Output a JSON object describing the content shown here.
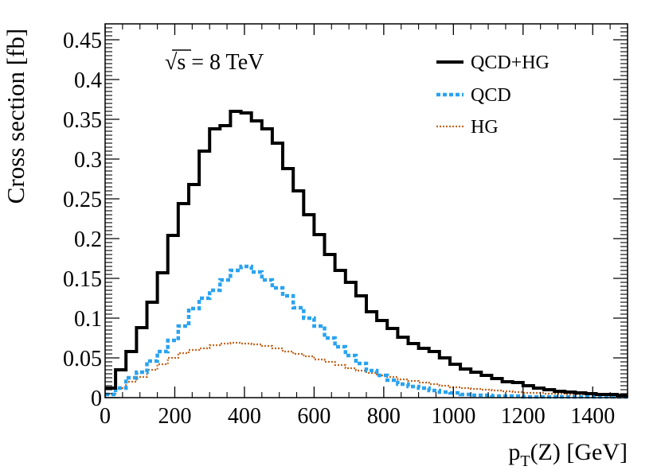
{
  "chart_data": {
    "type": "line",
    "step": true,
    "xlabel_main": "p",
    "xlabel_sub": "T",
    "xlabel_rest": "(Z) [GeV]",
    "ylabel": "Cross section [fb]",
    "annotation_root": "√s",
    "annotation_rest": " = 8 TeV",
    "xlim": [
      0,
      1500
    ],
    "ylim": [
      0,
      0.47
    ],
    "xticks": [
      0,
      200,
      400,
      600,
      800,
      1000,
      1200,
      1400
    ],
    "xtick_labels": [
      "0",
      "200",
      "400",
      "600",
      "800",
      "1000",
      "1200",
      "1400"
    ],
    "yticks": [
      0,
      0.05,
      0.1,
      0.15,
      0.2,
      0.25,
      0.3,
      0.35,
      0.4,
      0.45
    ],
    "ytick_labels": [
      "0",
      "0.05",
      "0.1",
      "0.15",
      "0.2",
      "0.25",
      "0.3",
      "0.35",
      "0.4",
      "0.45"
    ],
    "bin_width": 30,
    "series": [
      {
        "name": "QCD+HG",
        "color": "#000000",
        "style": "solid",
        "values": [
          0.012,
          0.035,
          0.058,
          0.088,
          0.12,
          0.157,
          0.204,
          0.244,
          0.268,
          0.31,
          0.338,
          0.342,
          0.36,
          0.358,
          0.348,
          0.338,
          0.32,
          0.288,
          0.26,
          0.23,
          0.205,
          0.18,
          0.16,
          0.145,
          0.128,
          0.108,
          0.097,
          0.087,
          0.076,
          0.068,
          0.062,
          0.058,
          0.05,
          0.042,
          0.036,
          0.032,
          0.028,
          0.024,
          0.02,
          0.019,
          0.015,
          0.012,
          0.01,
          0.008,
          0.007,
          0.006,
          0.005,
          0.004,
          0.004,
          0.003
        ]
      },
      {
        "name": "QCD",
        "color": "#29a3f0",
        "style": "dashed",
        "values": [
          0.004,
          0.012,
          0.025,
          0.032,
          0.046,
          0.058,
          0.072,
          0.09,
          0.112,
          0.125,
          0.135,
          0.148,
          0.16,
          0.165,
          0.158,
          0.148,
          0.138,
          0.128,
          0.113,
          0.1,
          0.09,
          0.075,
          0.064,
          0.053,
          0.043,
          0.034,
          0.028,
          0.022,
          0.017,
          0.014,
          0.012,
          0.009,
          0.007,
          0.006,
          0.004,
          0.003,
          0.003,
          0.002,
          0.002,
          0.002,
          0.001,
          0.001,
          0.001,
          0.001,
          0.001,
          0.001,
          0.001,
          0.001,
          0.001,
          0.001
        ]
      },
      {
        "name": "HG",
        "color": "#c8641e",
        "style": "dotted",
        "values": [
          0.005,
          0.012,
          0.02,
          0.026,
          0.035,
          0.042,
          0.05,
          0.056,
          0.06,
          0.062,
          0.066,
          0.068,
          0.069,
          0.068,
          0.067,
          0.065,
          0.062,
          0.058,
          0.055,
          0.052,
          0.048,
          0.045,
          0.041,
          0.037,
          0.034,
          0.031,
          0.028,
          0.026,
          0.023,
          0.021,
          0.019,
          0.017,
          0.015,
          0.013,
          0.012,
          0.011,
          0.01,
          0.009,
          0.008,
          0.007,
          0.006,
          0.006,
          0.005,
          0.005,
          0.004,
          0.004,
          0.004,
          0.003,
          0.003,
          0.003
        ]
      }
    ]
  }
}
